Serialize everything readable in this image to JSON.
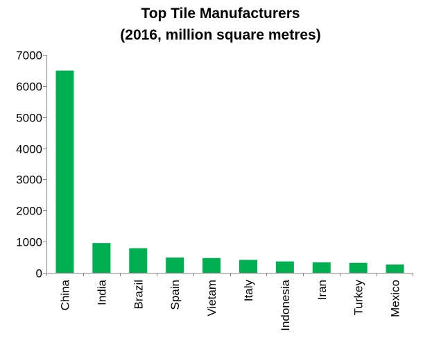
{
  "chart_data": {
    "type": "bar",
    "title": "Top Tile Manufacturers",
    "subtitle": "(2016, million square metres)",
    "xlabel": "",
    "ylabel": "",
    "categories": [
      "China",
      "India",
      "Brazil",
      "Spain",
      "Vietam",
      "Italy",
      "Indonesia",
      "Iran",
      "Turkey",
      "Mexico"
    ],
    "values": [
      6495,
      955,
      790,
      490,
      475,
      415,
      365,
      335,
      320,
      265
    ],
    "ylim": [
      0,
      7000
    ],
    "yticks": [
      0,
      1000,
      2000,
      3000,
      4000,
      5000,
      6000,
      7000
    ],
    "grid": false,
    "legend": "none",
    "bar_color": "#00b050",
    "axis_color": "#868686"
  }
}
